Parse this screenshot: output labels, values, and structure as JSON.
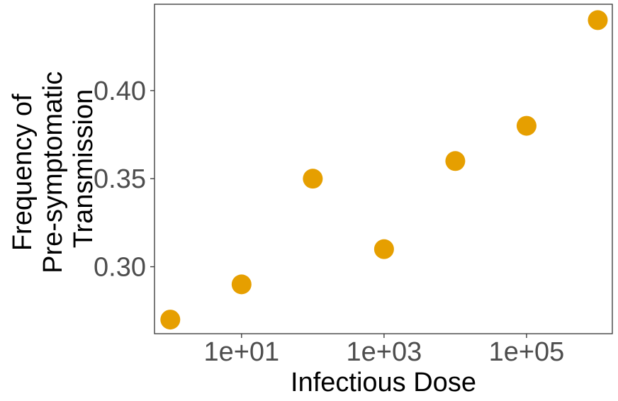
{
  "chart_data": {
    "type": "scatter",
    "title": "",
    "xlabel": "Infectious Dose",
    "ylabel_lines": [
      "Frequency of",
      "Pre-symptomatic",
      "Transmission"
    ],
    "x_scale": "log10",
    "x": [
      1,
      10,
      100,
      1000,
      10000,
      100000,
      1000000
    ],
    "y": [
      0.27,
      0.29,
      0.35,
      0.31,
      0.36,
      0.38,
      0.44
    ],
    "xlim": [
      0.6,
      1600000.0
    ],
    "ylim": [
      0.262,
      0.449
    ],
    "x_ticks": [
      {
        "value": 10,
        "label": "1e+01"
      },
      {
        "value": 1000,
        "label": "1e+03"
      },
      {
        "value": 100000,
        "label": "1e+05"
      }
    ],
    "y_ticks": [
      {
        "value": 0.3,
        "label": "0.30"
      },
      {
        "value": 0.35,
        "label": "0.35"
      },
      {
        "value": 0.4,
        "label": "0.40"
      }
    ],
    "point_color": "#E69F00",
    "grid": false,
    "legend": "none"
  }
}
